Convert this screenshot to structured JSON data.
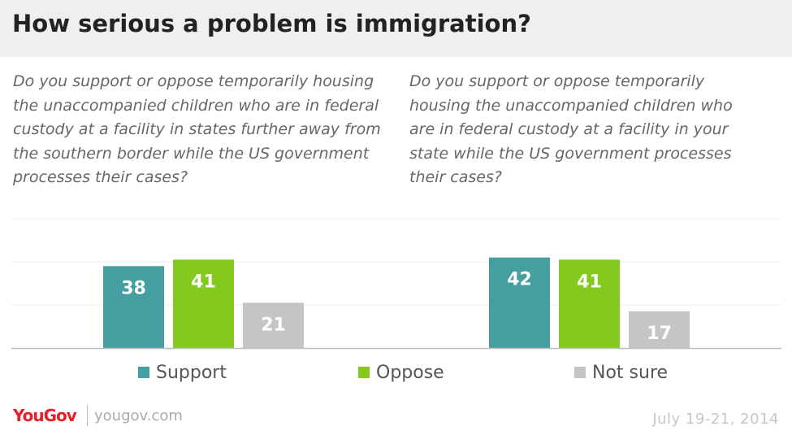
{
  "title": "How serious a problem is immigration?",
  "questions": {
    "left": "Do you support or oppose temporarily housing the unaccompanied children who are in federal custody at a facility in states further away from the southern border while the US government processes their cases?",
    "right": "Do you support or oppose temporarily housing the unaccompanied children who are in federal custody at a facility in your state while the US government processes their cases?"
  },
  "legend": {
    "support": "Support",
    "oppose": "Oppose",
    "not_sure": "Not sure"
  },
  "colors": {
    "support": "#459ea0",
    "oppose": "#84c91d",
    "not_sure": "#c5c5c5",
    "brand": "#e4202b"
  },
  "chart_data": {
    "type": "bar",
    "groups": [
      {
        "question": "Do you support or oppose temporarily housing the unaccompanied children who are in federal custody at a facility in states further away from the southern border while the US government processes their cases?",
        "values": {
          "Support": 38,
          "Oppose": 41,
          "Not sure": 21
        }
      },
      {
        "question": "Do you support or oppose temporarily housing the unaccompanied children who are in federal custody at a facility in your state while the US government processes their cases?",
        "values": {
          "Support": 42,
          "Oppose": 41,
          "Not sure": 17
        }
      }
    ],
    "series": [
      {
        "name": "Support",
        "values": [
          38,
          42
        ]
      },
      {
        "name": "Oppose",
        "values": [
          41,
          41
        ]
      },
      {
        "name": "Not sure",
        "values": [
          21,
          17
        ]
      }
    ],
    "ylim": [
      0,
      60
    ],
    "grid": true,
    "legend_position": "bottom",
    "data_labels": true
  },
  "footer": {
    "logo": "YouGov",
    "site": "yougov.com",
    "date": "July 19-21, 2014"
  }
}
